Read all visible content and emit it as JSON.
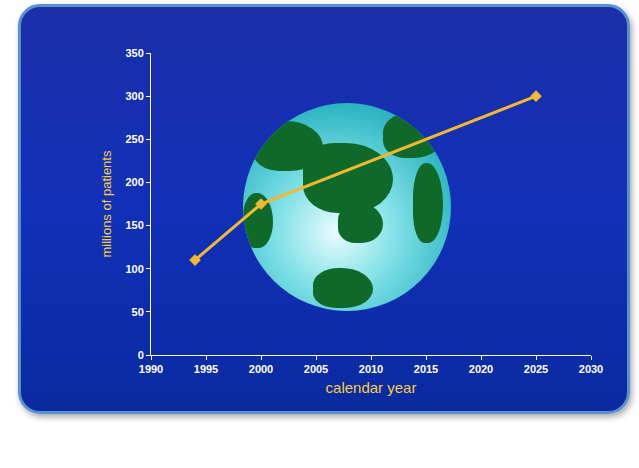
{
  "chart_data": {
    "type": "line",
    "x": [
      1994,
      2000,
      2025
    ],
    "values": [
      110,
      175,
      300
    ],
    "color": "#f2b830",
    "marker": "diamond",
    "xlabel": "calendar year",
    "ylabel": "millions of patients",
    "xlim": [
      1990,
      2030
    ],
    "xticks": [
      1990,
      1995,
      2000,
      2005,
      2010,
      2015,
      2020,
      2025,
      2030
    ],
    "ylim": [
      0,
      350
    ],
    "yticks": [
      0,
      50,
      100,
      150,
      200,
      250,
      300,
      350
    ],
    "grid": false
  }
}
